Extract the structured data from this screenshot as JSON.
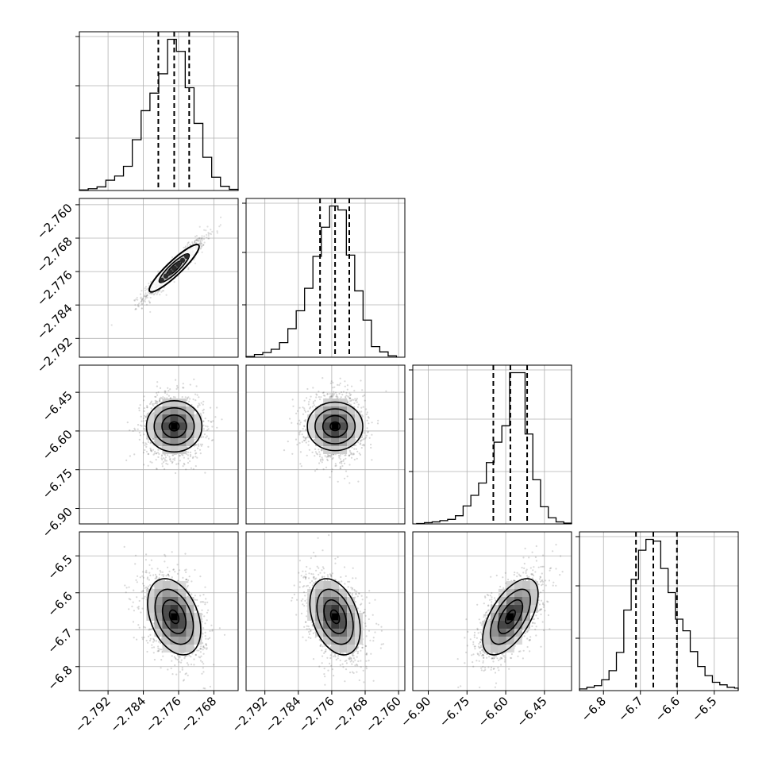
{
  "chart_data": {
    "type": "corner",
    "grid": true,
    "colors": {
      "ink": "#000000",
      "scatter": "#4d4d4d",
      "grid": "#b0b0b0"
    },
    "params": [
      {
        "range": [
          -2.7985,
          -2.7625
        ],
        "ticks": [
          -2.792,
          -2.784,
          -2.776,
          -2.768
        ],
        "tick_labels": [
          "−2.792",
          "−2.784",
          "−2.776",
          "−2.768"
        ],
        "quantiles": [
          -2.7806,
          -2.777,
          -2.7736
        ],
        "hist_x": [
          -2.7975,
          -2.7955,
          -2.7935,
          -2.7915,
          -2.7895,
          -2.7875,
          -2.7855,
          -2.7835,
          -2.7815,
          -2.7795,
          -2.7775,
          -2.7755,
          -2.7735,
          -2.7715,
          -2.7695,
          -2.7675,
          -2.7655,
          -2.7635
        ],
        "hist_counts": [
          1,
          3,
          6,
          17,
          24,
          40,
          84,
          132,
          161,
          193,
          250,
          230,
          170,
          111,
          55,
          22,
          7,
          2
        ]
      },
      {
        "range": [
          -2.7965,
          -2.7585
        ],
        "ticks": [
          -2.792,
          -2.784,
          -2.776,
          -2.768,
          -2.76
        ],
        "tick_labels": [
          "−2.792",
          "−2.784",
          "−2.776",
          "−2.768",
          "−2.760"
        ],
        "quantiles": [
          -2.7788,
          -2.7752,
          -2.7718
        ],
        "hist_x": [
          -2.7955,
          -2.7935,
          -2.7915,
          -2.7895,
          -2.7875,
          -2.7855,
          -2.7835,
          -2.7815,
          -2.7795,
          -2.7775,
          -2.7755,
          -2.7735,
          -2.7715,
          -2.7695,
          -2.7675,
          -2.7655,
          -2.7635,
          -2.7615
        ],
        "hist_counts": [
          1,
          4,
          7,
          12,
          22,
          43,
          70,
          104,
          152,
          196,
          228,
          222,
          154,
          100,
          56,
          16,
          8,
          2
        ]
      },
      {
        "range": [
          -6.96,
          -6.345
        ],
        "ticks": [
          -6.9,
          -6.75,
          -6.6,
          -6.45
        ],
        "tick_labels": [
          "−6.90",
          "−6.75",
          "−6.60",
          "−6.45"
        ],
        "quantiles": [
          -6.648,
          -6.582,
          -6.517
        ],
        "hist_x": [
          -6.93,
          -6.9,
          -6.87,
          -6.84,
          -6.81,
          -6.78,
          -6.75,
          -6.72,
          -6.69,
          -6.66,
          -6.63,
          -6.6,
          -6.57,
          -6.54,
          -6.51,
          -6.48,
          -6.45,
          -6.42,
          -6.39,
          -6.36
        ],
        "hist_counts": [
          1,
          3,
          5,
          8,
          11,
          20,
          44,
          70,
          100,
          150,
          200,
          240,
          370,
          370,
          220,
          108,
          42,
          15,
          5,
          2
        ]
      },
      {
        "range": [
          -6.865,
          -6.435
        ],
        "ticks": [
          -6.8,
          -6.7,
          -6.6,
          -6.5
        ],
        "tick_labels": [
          "−6.8",
          "−6.7",
          "−6.6",
          "−6.5"
        ],
        "quantiles": [
          -6.712,
          -6.665,
          -6.601
        ],
        "hist_x": [
          -6.855,
          -6.835,
          -6.815,
          -6.795,
          -6.775,
          -6.755,
          -6.735,
          -6.715,
          -6.695,
          -6.675,
          -6.655,
          -6.635,
          -6.615,
          -6.595,
          -6.575,
          -6.555,
          -6.535,
          -6.515,
          -6.495,
          -6.475,
          -6.455,
          -6.435
        ],
        "hist_counts": [
          2,
          4,
          6,
          13,
          24,
          46,
          97,
          134,
          169,
          182,
          180,
          147,
          118,
          86,
          72,
          47,
          29,
          18,
          10,
          7,
          4,
          3
        ]
      }
    ],
    "pairs": [
      {
        "row": 1,
        "col": 0,
        "mean": [
          -2.777,
          -2.7752
        ],
        "sd": [
          0.0027,
          0.0027
        ],
        "rho": 0.99,
        "band_width": 0.0012
      },
      {
        "row": 2,
        "col": 0,
        "mean": [
          -2.777,
          -6.582
        ],
        "sd": [
          0.0027,
          0.05
        ],
        "rho": 0.0
      },
      {
        "row": 2,
        "col": 1,
        "mean": [
          -2.7752,
          -6.582
        ],
        "sd": [
          0.0027,
          0.05
        ],
        "rho": 0.0
      },
      {
        "row": 3,
        "col": 0,
        "mean": [
          -2.777,
          -6.665
        ],
        "sd": [
          0.0028,
          0.048
        ],
        "rho": -0.35
      },
      {
        "row": 3,
        "col": 1,
        "mean": [
          -2.7752,
          -6.665
        ],
        "sd": [
          0.0028,
          0.048
        ],
        "rho": -0.35
      },
      {
        "row": 3,
        "col": 2,
        "mean": [
          -6.582,
          -6.665
        ],
        "sd": [
          0.05,
          0.048
        ],
        "rho": 0.6
      }
    ]
  }
}
